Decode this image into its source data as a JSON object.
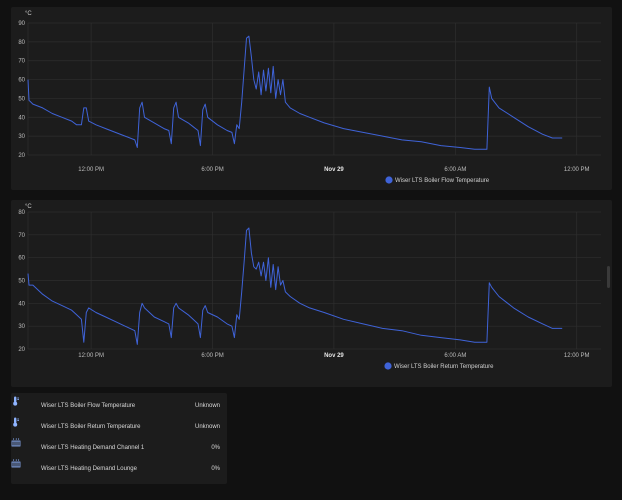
{
  "charts_common": {
    "x_ticks": [
      {
        "label": "12:00 PM",
        "t": 0.5
      },
      {
        "label": "6:00 PM",
        "t": 0.75
      },
      {
        "label": "Nov 29",
        "t": 1.0,
        "bold": true
      },
      {
        "label": "6:00 AM",
        "t": 1.25
      },
      {
        "label": "12:00 PM",
        "t": 1.5
      }
    ]
  },
  "chart_data": [
    {
      "type": "line",
      "unit": "°C",
      "ylim": [
        20,
        90
      ],
      "yticks": [
        20,
        30,
        40,
        50,
        60,
        70,
        80,
        90
      ],
      "grid": true,
      "legend": "bottom-center",
      "series": [
        {
          "name": "Wiser LTS Boiler Flow Temperature",
          "color": "#3f63d8",
          "points": [
            [
              0.37,
              60
            ],
            [
              0.372,
              49
            ],
            [
              0.38,
              47
            ],
            [
              0.4,
              45
            ],
            [
              0.42,
              42
            ],
            [
              0.44,
              40
            ],
            [
              0.46,
              38
            ],
            [
              0.47,
              36
            ],
            [
              0.48,
              36
            ],
            [
              0.485,
              45
            ],
            [
              0.49,
              45
            ],
            [
              0.495,
              38
            ],
            [
              0.51,
              36
            ],
            [
              0.53,
              34
            ],
            [
              0.55,
              32
            ],
            [
              0.57,
              30
            ],
            [
              0.58,
              29
            ],
            [
              0.59,
              28
            ],
            [
              0.595,
              24
            ],
            [
              0.6,
              45
            ],
            [
              0.605,
              48
            ],
            [
              0.61,
              40
            ],
            [
              0.63,
              37
            ],
            [
              0.65,
              34
            ],
            [
              0.66,
              33
            ],
            [
              0.665,
              26
            ],
            [
              0.67,
              45
            ],
            [
              0.675,
              48
            ],
            [
              0.68,
              40
            ],
            [
              0.7,
              37
            ],
            [
              0.71,
              35
            ],
            [
              0.72,
              33
            ],
            [
              0.725,
              25
            ],
            [
              0.73,
              44
            ],
            [
              0.735,
              47
            ],
            [
              0.74,
              40
            ],
            [
              0.76,
              36
            ],
            [
              0.78,
              33
            ],
            [
              0.79,
              32
            ],
            [
              0.795,
              26
            ],
            [
              0.8,
              36
            ],
            [
              0.805,
              34
            ],
            [
              0.81,
              48
            ],
            [
              0.815,
              65
            ],
            [
              0.82,
              82
            ],
            [
              0.825,
              83
            ],
            [
              0.83,
              72
            ],
            [
              0.835,
              60
            ],
            [
              0.84,
              55
            ],
            [
              0.845,
              64
            ],
            [
              0.85,
              52
            ],
            [
              0.855,
              65
            ],
            [
              0.86,
              54
            ],
            [
              0.865,
              66
            ],
            [
              0.87,
              53
            ],
            [
              0.875,
              67
            ],
            [
              0.88,
              50
            ],
            [
              0.885,
              60
            ],
            [
              0.89,
              52
            ],
            [
              0.895,
              60
            ],
            [
              0.9,
              48
            ],
            [
              0.91,
              45
            ],
            [
              0.93,
              42
            ],
            [
              0.95,
              40
            ],
            [
              0.98,
              37
            ],
            [
              1.02,
              34
            ],
            [
              1.06,
              32
            ],
            [
              1.1,
              30
            ],
            [
              1.14,
              28
            ],
            [
              1.18,
              27
            ],
            [
              1.22,
              25
            ],
            [
              1.26,
              24
            ],
            [
              1.29,
              23
            ],
            [
              1.315,
              23
            ],
            [
              1.32,
              56
            ],
            [
              1.325,
              50
            ],
            [
              1.34,
              45
            ],
            [
              1.37,
              40
            ],
            [
              1.4,
              35
            ],
            [
              1.43,
              31
            ],
            [
              1.45,
              29
            ],
            [
              1.47,
              29
            ]
          ]
        }
      ]
    },
    {
      "type": "line",
      "unit": "°C",
      "ylim": [
        20,
        80
      ],
      "yticks": [
        20,
        30,
        40,
        50,
        60,
        70,
        80
      ],
      "grid": true,
      "legend": "bottom-center",
      "series": [
        {
          "name": "Wiser LTS Boiler Return Temperature",
          "color": "#3f63d8",
          "points": [
            [
              0.37,
              53
            ],
            [
              0.372,
              48
            ],
            [
              0.38,
              48
            ],
            [
              0.4,
              44
            ],
            [
              0.42,
              41
            ],
            [
              0.44,
              39
            ],
            [
              0.46,
              37
            ],
            [
              0.47,
              35
            ],
            [
              0.48,
              33
            ],
            [
              0.485,
              23
            ],
            [
              0.49,
              36
            ],
            [
              0.495,
              38
            ],
            [
              0.51,
              36
            ],
            [
              0.53,
              34
            ],
            [
              0.55,
              32
            ],
            [
              0.57,
              30
            ],
            [
              0.58,
              29
            ],
            [
              0.59,
              28
            ],
            [
              0.595,
              22
            ],
            [
              0.6,
              36
            ],
            [
              0.605,
              40
            ],
            [
              0.61,
              38
            ],
            [
              0.63,
              34
            ],
            [
              0.65,
              32
            ],
            [
              0.66,
              31
            ],
            [
              0.665,
              25
            ],
            [
              0.67,
              38
            ],
            [
              0.675,
              40
            ],
            [
              0.68,
              38
            ],
            [
              0.7,
              35
            ],
            [
              0.71,
              33
            ],
            [
              0.72,
              31
            ],
            [
              0.725,
              25
            ],
            [
              0.73,
              37
            ],
            [
              0.735,
              39
            ],
            [
              0.74,
              36
            ],
            [
              0.76,
              34
            ],
            [
              0.78,
              31
            ],
            [
              0.79,
              30
            ],
            [
              0.795,
              25
            ],
            [
              0.8,
              35
            ],
            [
              0.805,
              33
            ],
            [
              0.81,
              45
            ],
            [
              0.815,
              58
            ],
            [
              0.82,
              72
            ],
            [
              0.825,
              73
            ],
            [
              0.83,
              62
            ],
            [
              0.835,
              56
            ],
            [
              0.84,
              55
            ],
            [
              0.845,
              58
            ],
            [
              0.85,
              52
            ],
            [
              0.855,
              58
            ],
            [
              0.86,
              50
            ],
            [
              0.865,
              60
            ],
            [
              0.87,
              47
            ],
            [
              0.875,
              57
            ],
            [
              0.88,
              46
            ],
            [
              0.885,
              56
            ],
            [
              0.89,
              48
            ],
            [
              0.895,
              50
            ],
            [
              0.9,
              45
            ],
            [
              0.91,
              43
            ],
            [
              0.93,
              40
            ],
            [
              0.95,
              38
            ],
            [
              0.98,
              36
            ],
            [
              1.02,
              33
            ],
            [
              1.06,
              31
            ],
            [
              1.1,
              29
            ],
            [
              1.14,
              28
            ],
            [
              1.18,
              26
            ],
            [
              1.22,
              25
            ],
            [
              1.26,
              24
            ],
            [
              1.29,
              23
            ],
            [
              1.315,
              23
            ],
            [
              1.32,
              49
            ],
            [
              1.325,
              47
            ],
            [
              1.34,
              43
            ],
            [
              1.37,
              38
            ],
            [
              1.4,
              34
            ],
            [
              1.43,
              31
            ],
            [
              1.45,
              29
            ],
            [
              1.47,
              29
            ]
          ]
        }
      ]
    }
  ],
  "entities": [
    {
      "name": "Wiser LTS Boiler Flow Temperature",
      "state": "Unknown",
      "icon": "thermometer-icon"
    },
    {
      "name": "Wiser LTS Boiler Return Temperature",
      "state": "Unknown",
      "icon": "thermometer-icon"
    },
    {
      "name": "Wiser LTS Heating Demand Channel 1",
      "state": "0%",
      "icon": "radiator-icon"
    },
    {
      "name": "Wiser LTS Heating Demand Lounge",
      "state": "0%",
      "icon": "radiator-icon"
    }
  ]
}
